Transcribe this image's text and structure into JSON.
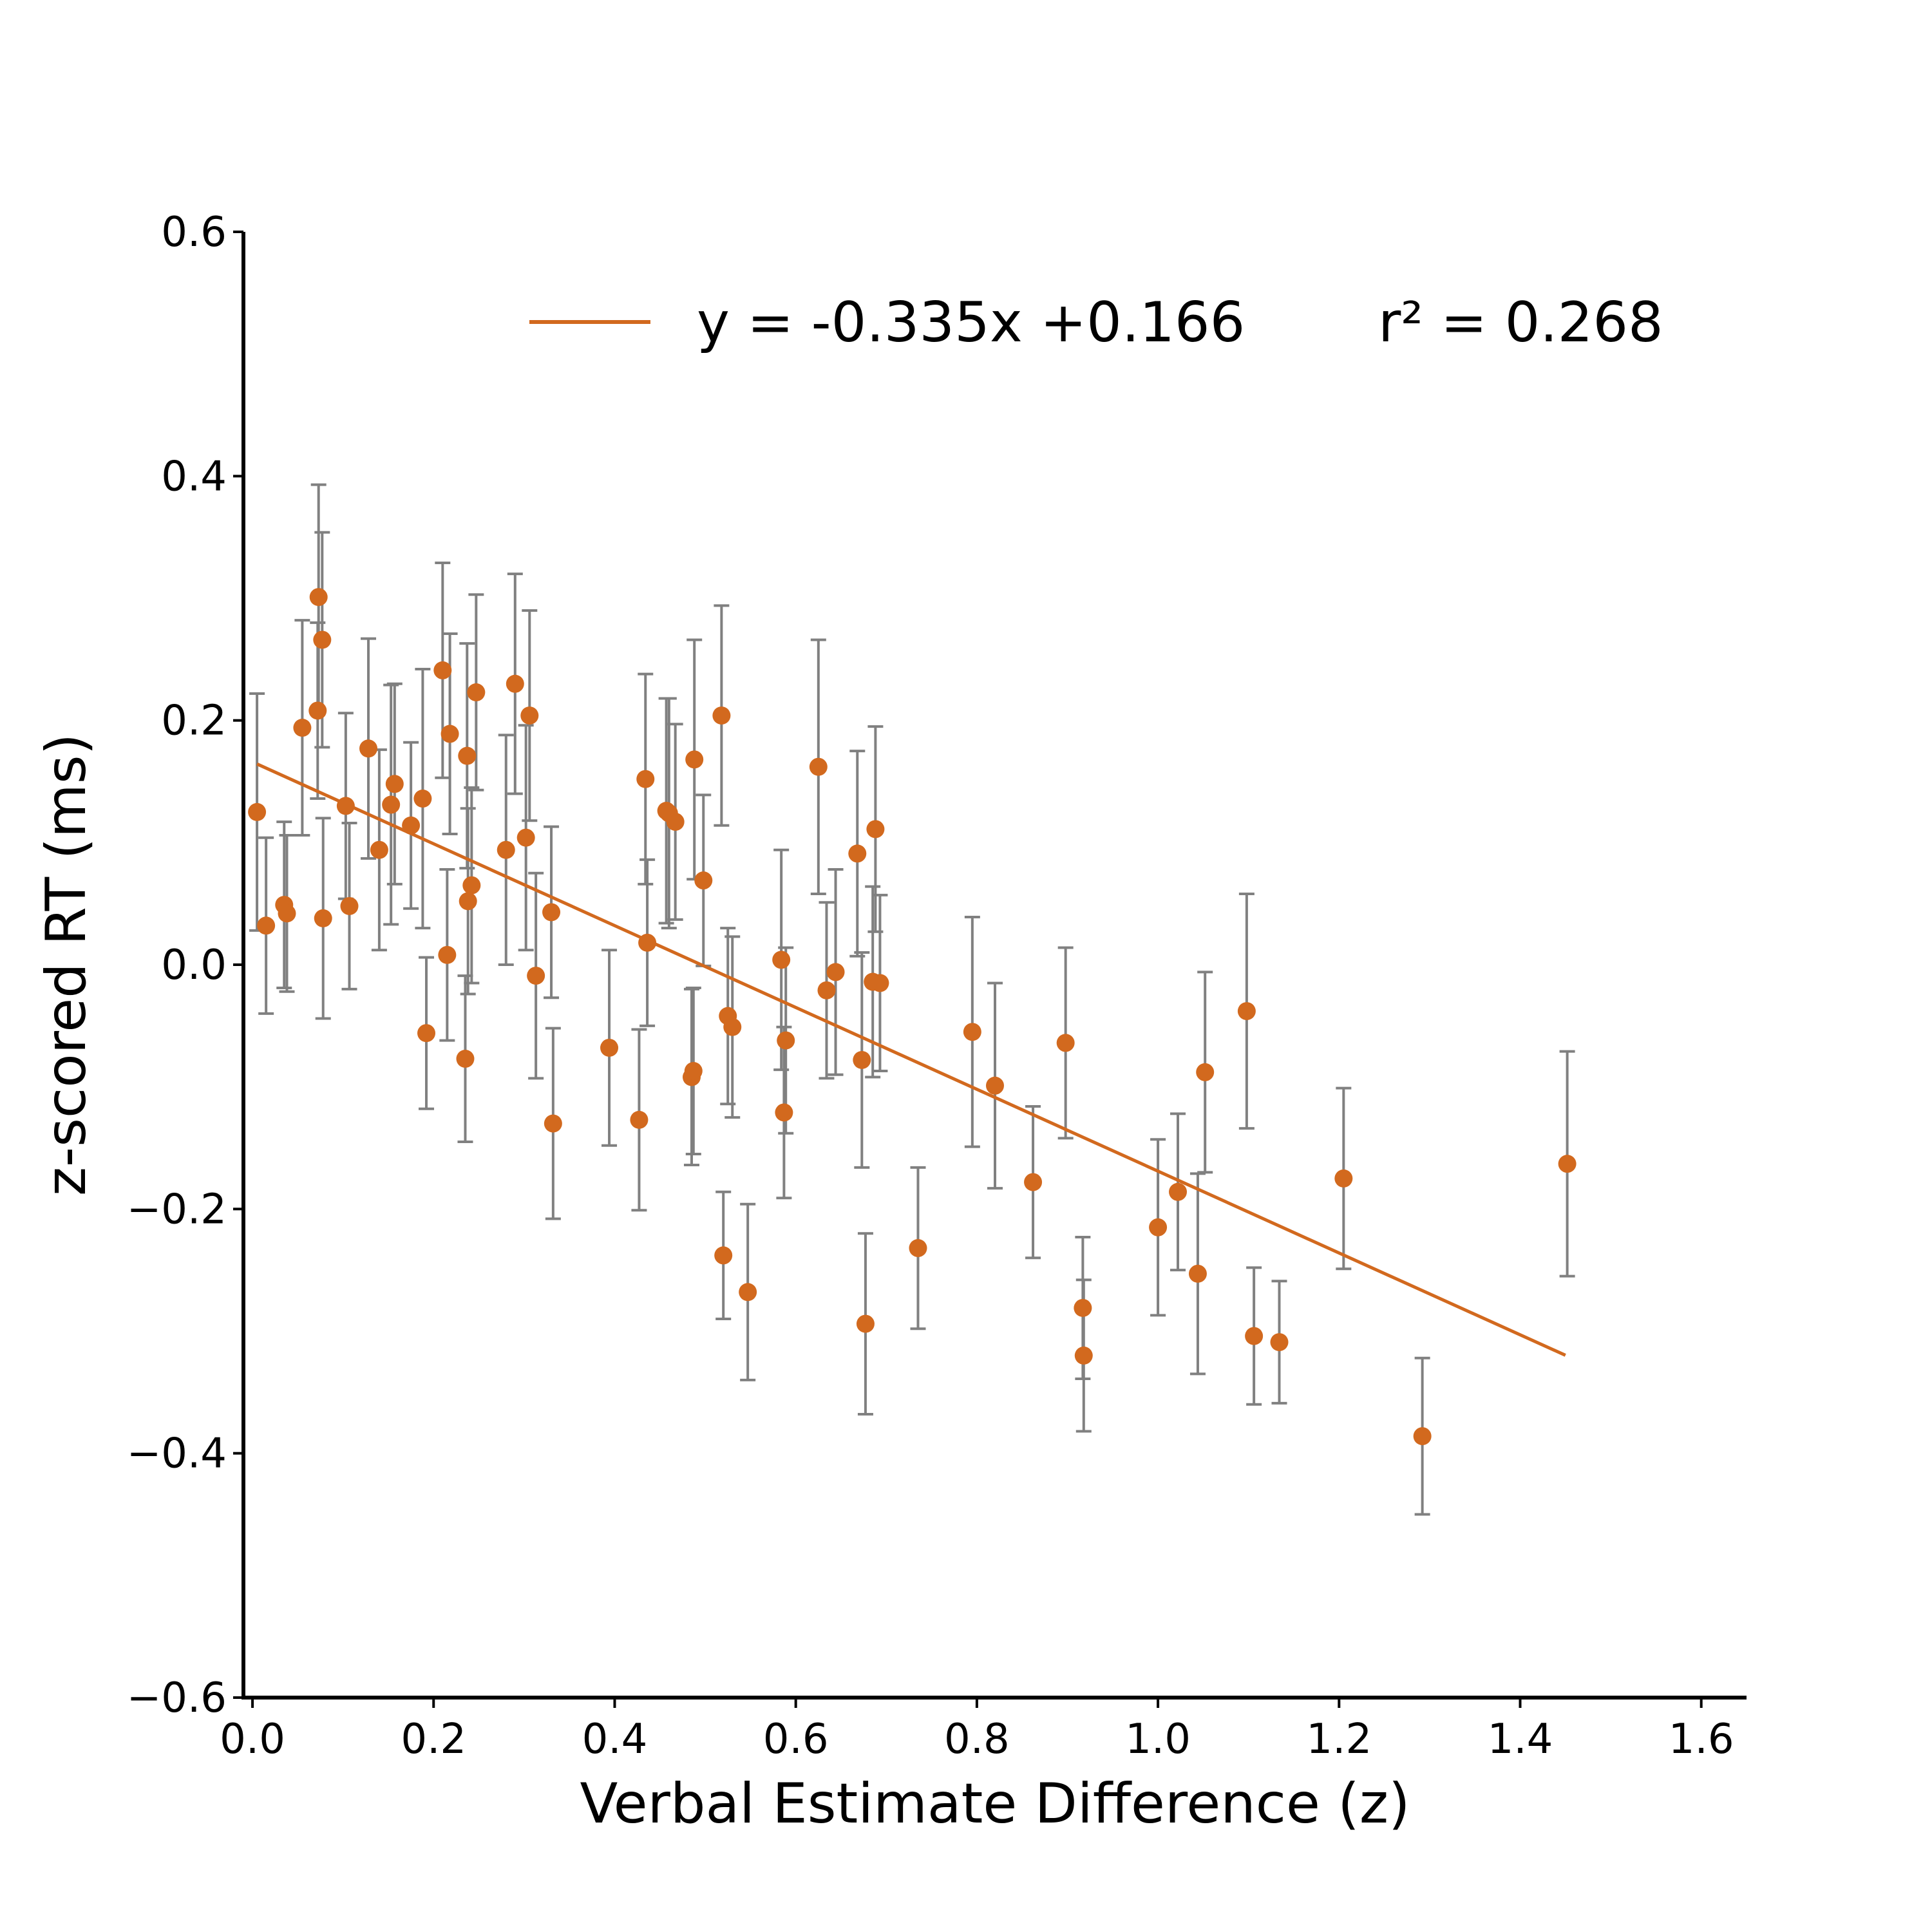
{
  "chart_data": {
    "type": "scatter",
    "title": "",
    "xlabel": "Verbal Estimate Difference (z)",
    "ylabel": "z-scored RT (ms)",
    "xlim": [
      -0.01,
      1.65
    ],
    "ylim": [
      -0.6,
      0.6
    ],
    "xticks": [
      0.0,
      0.2,
      0.4,
      0.6,
      0.8,
      1.0,
      1.2,
      1.4,
      1.6
    ],
    "xtick_labels": [
      "0.0",
      "0.2",
      "0.4",
      "0.6",
      "0.8",
      "1.0",
      "1.2",
      "1.4",
      "1.6"
    ],
    "yticks": [
      -0.6,
      -0.4,
      -0.2,
      0.0,
      0.2,
      0.4,
      0.6
    ],
    "ytick_labels": [
      "−0.6",
      "−0.4",
      "−0.2",
      "0.0",
      "0.2",
      "0.4",
      "0.6"
    ],
    "grid": false,
    "legend_position": "top-right",
    "colors": {
      "points": "#d2691e",
      "errorbars": "#808080",
      "fit": "#d2691e",
      "axes": "#000000"
    },
    "fit": {
      "slope": -0.335,
      "intercept": 0.166,
      "x_range": [
        0.005,
        1.45
      ]
    },
    "legend": {
      "equation": "y = -0.335x +0.166",
      "r2": "r² = 0.268"
    },
    "points": [
      {
        "x": 0.005,
        "y": 0.125,
        "err": 0.097
      },
      {
        "x": 0.015,
        "y": 0.032,
        "err": 0.072
      },
      {
        "x": 0.035,
        "y": 0.049,
        "err": 0.068
      },
      {
        "x": 0.038,
        "y": 0.042,
        "err": 0.064
      },
      {
        "x": 0.055,
        "y": 0.194,
        "err": 0.088
      },
      {
        "x": 0.072,
        "y": 0.208,
        "err": 0.072
      },
      {
        "x": 0.073,
        "y": 0.301,
        "err": 0.092
      },
      {
        "x": 0.077,
        "y": 0.266,
        "err": 0.088
      },
      {
        "x": 0.078,
        "y": 0.038,
        "err": 0.082
      },
      {
        "x": 0.103,
        "y": 0.13,
        "err": 0.076
      },
      {
        "x": 0.107,
        "y": 0.048,
        "err": 0.068
      },
      {
        "x": 0.128,
        "y": 0.177,
        "err": 0.09
      },
      {
        "x": 0.14,
        "y": 0.094,
        "err": 0.082
      },
      {
        "x": 0.153,
        "y": 0.131,
        "err": 0.098
      },
      {
        "x": 0.157,
        "y": 0.148,
        "err": 0.082
      },
      {
        "x": 0.175,
        "y": 0.114,
        "err": 0.068
      },
      {
        "x": 0.188,
        "y": 0.136,
        "err": 0.106
      },
      {
        "x": 0.192,
        "y": -0.056,
        "err": 0.062
      },
      {
        "x": 0.21,
        "y": 0.241,
        "err": 0.088
      },
      {
        "x": 0.215,
        "y": 0.008,
        "err": 0.07
      },
      {
        "x": 0.218,
        "y": 0.189,
        "err": 0.082
      },
      {
        "x": 0.235,
        "y": -0.077,
        "err": 0.068
      },
      {
        "x": 0.237,
        "y": 0.171,
        "err": 0.092
      },
      {
        "x": 0.238,
        "y": 0.052,
        "err": 0.076
      },
      {
        "x": 0.242,
        "y": 0.065,
        "err": 0.08
      },
      {
        "x": 0.247,
        "y": 0.223,
        "err": 0.08
      },
      {
        "x": 0.28,
        "y": 0.094,
        "err": 0.094
      },
      {
        "x": 0.29,
        "y": 0.23,
        "err": 0.09
      },
      {
        "x": 0.302,
        "y": 0.104,
        "err": 0.092
      },
      {
        "x": 0.306,
        "y": 0.204,
        "err": 0.086
      },
      {
        "x": 0.313,
        "y": -0.009,
        "err": 0.084
      },
      {
        "x": 0.33,
        "y": 0.043,
        "err": 0.07
      },
      {
        "x": 0.332,
        "y": -0.13,
        "err": 0.078
      },
      {
        "x": 0.394,
        "y": -0.068,
        "err": 0.08
      },
      {
        "x": 0.427,
        "y": -0.127,
        "err": 0.074
      },
      {
        "x": 0.434,
        "y": 0.152,
        "err": 0.086
      },
      {
        "x": 0.436,
        "y": 0.018,
        "err": 0.068
      },
      {
        "x": 0.457,
        "y": 0.126,
        "err": 0.092
      },
      {
        "x": 0.46,
        "y": 0.124,
        "err": 0.094
      },
      {
        "x": 0.467,
        "y": 0.117,
        "err": 0.08
      },
      {
        "x": 0.485,
        "y": -0.092,
        "err": 0.072
      },
      {
        "x": 0.487,
        "y": -0.087,
        "err": 0.068
      },
      {
        "x": 0.488,
        "y": 0.168,
        "err": 0.098
      },
      {
        "x": 0.498,
        "y": 0.069,
        "err": 0.07
      },
      {
        "x": 0.518,
        "y": 0.204,
        "err": 0.09
      },
      {
        "x": 0.52,
        "y": -0.238,
        "err": 0.052
      },
      {
        "x": 0.525,
        "y": -0.042,
        "err": 0.072
      },
      {
        "x": 0.53,
        "y": -0.051,
        "err": 0.074
      },
      {
        "x": 0.547,
        "y": -0.268,
        "err": 0.072
      },
      {
        "x": 0.584,
        "y": 0.004,
        "err": 0.09
      },
      {
        "x": 0.587,
        "y": -0.121,
        "err": 0.07
      },
      {
        "x": 0.589,
        "y": -0.062,
        "err": 0.076
      },
      {
        "x": 0.625,
        "y": 0.162,
        "err": 0.104
      },
      {
        "x": 0.634,
        "y": -0.021,
        "err": 0.072
      },
      {
        "x": 0.644,
        "y": -0.006,
        "err": 0.084
      },
      {
        "x": 0.668,
        "y": 0.091,
        "err": 0.084
      },
      {
        "x": 0.673,
        "y": -0.078,
        "err": 0.088
      },
      {
        "x": 0.677,
        "y": -0.294,
        "err": 0.074
      },
      {
        "x": 0.685,
        "y": -0.014,
        "err": 0.078
      },
      {
        "x": 0.688,
        "y": 0.111,
        "err": 0.084
      },
      {
        "x": 0.693,
        "y": -0.015,
        "err": 0.072
      },
      {
        "x": 0.735,
        "y": -0.232,
        "err": 0.066
      },
      {
        "x": 0.795,
        "y": -0.055,
        "err": 0.094
      },
      {
        "x": 0.82,
        "y": -0.099,
        "err": 0.084
      },
      {
        "x": 0.862,
        "y": -0.178,
        "err": 0.062
      },
      {
        "x": 0.898,
        "y": -0.064,
        "err": 0.078
      },
      {
        "x": 0.917,
        "y": -0.281,
        "err": 0.058
      },
      {
        "x": 0.918,
        "y": -0.32,
        "err": 0.062
      },
      {
        "x": 1.0,
        "y": -0.215,
        "err": 0.072
      },
      {
        "x": 1.022,
        "y": -0.186,
        "err": 0.064
      },
      {
        "x": 1.044,
        "y": -0.253,
        "err": 0.082
      },
      {
        "x": 1.052,
        "y": -0.088,
        "err": 0.082
      },
      {
        "x": 1.098,
        "y": -0.038,
        "err": 0.096
      },
      {
        "x": 1.106,
        "y": -0.304,
        "err": 0.056
      },
      {
        "x": 1.134,
        "y": -0.309,
        "err": 0.05
      },
      {
        "x": 1.205,
        "y": -0.175,
        "err": 0.074
      },
      {
        "x": 1.292,
        "y": -0.386,
        "err": 0.064
      },
      {
        "x": 1.452,
        "y": -0.163,
        "err": 0.092
      }
    ]
  }
}
